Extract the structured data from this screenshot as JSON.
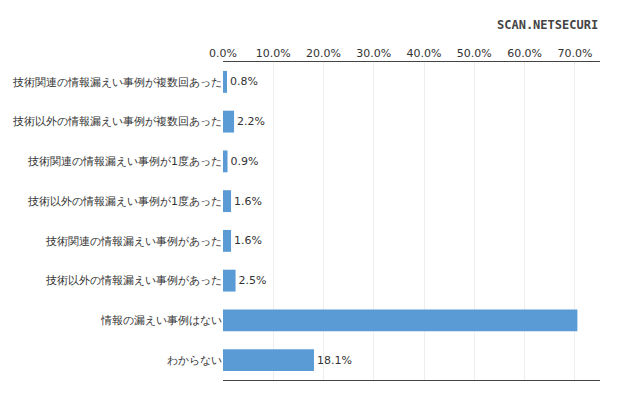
{
  "chart_data": {
    "type": "bar",
    "orientation": "horizontal",
    "categories": [
      "技術関連の情報漏えい事例が複数回あった",
      "技術以外の情報漏えい事例が複数回あった",
      "技術関連の情報漏えい事例が1度あった",
      "技術以外の情報漏えい事例が1度あった",
      "技術関連の情報漏えい事例があった",
      "技術以外の情報漏えい事例があった",
      "情報の漏えい事例はない",
      "わからない"
    ],
    "values": [
      0.8,
      2.2,
      0.9,
      1.6,
      1.6,
      2.5,
      70.5,
      18.1
    ],
    "value_labels": [
      "0.8%",
      "2.2%",
      "0.9%",
      "1.6%",
      "1.6%",
      "2.5%",
      null,
      "18.1%"
    ],
    "data_labels": true,
    "color": "#5B9BD5",
    "xlim": [
      0,
      75
    ],
    "xticks": [
      {
        "value": 0,
        "label": "0.0%"
      },
      {
        "value": 10,
        "label": "10.0%"
      },
      {
        "value": 20,
        "label": "20.0%"
      },
      {
        "value": 30,
        "label": "30.0%"
      },
      {
        "value": 40,
        "label": "40.0%"
      },
      {
        "value": 50,
        "label": "50.0%"
      },
      {
        "value": 60,
        "label": "60.0%"
      },
      {
        "value": 70,
        "label": "70.0%"
      }
    ],
    "grid": true,
    "annotations": [
      "SCAN.NETSECURI"
    ]
  }
}
